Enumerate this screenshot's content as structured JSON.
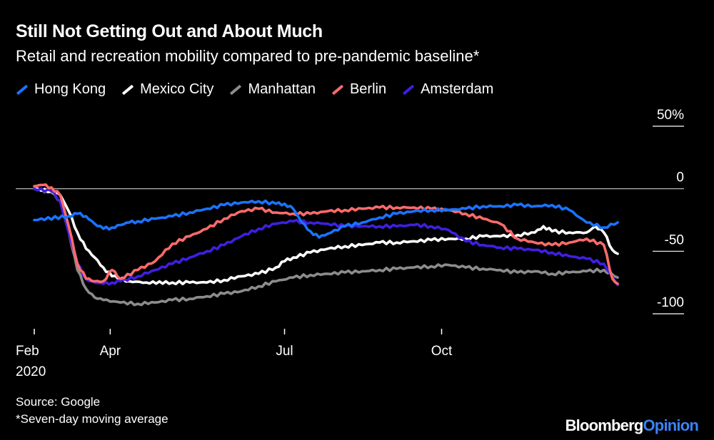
{
  "title": "Still Not Getting Out and About Much",
  "subtitle": "Retail and recreation mobility compared to pre-pandemic baseline*",
  "source": "Source: Google",
  "footnote": "*Seven-day moving average",
  "brand": {
    "part1": "Bloomberg",
    "part2": "Opinion"
  },
  "chart_data": {
    "type": "line",
    "title": "Still Not Getting Out and About Much",
    "ylabel": "Retail and recreation mobility compared to pre-pandemic baseline (%)",
    "ylim": [
      -100,
      50
    ],
    "xlim": [
      0,
      345
    ],
    "x_ticks": [
      {
        "x": 0,
        "label": "Feb",
        "sublabel": "2020"
      },
      {
        "x": 44,
        "label": "Apr",
        "sublabel": ""
      },
      {
        "x": 145,
        "label": "Jul",
        "sublabel": ""
      },
      {
        "x": 236,
        "label": "Oct",
        "sublabel": ""
      }
    ],
    "y_ticks": [
      {
        "value": 50,
        "label": "50%"
      },
      {
        "value": 0,
        "label": "0"
      },
      {
        "value": -50,
        "label": "-50"
      },
      {
        "value": -100,
        "label": "-100"
      }
    ],
    "zero_line": 0,
    "x_unit": "days since Feb 15, 2020",
    "series": [
      {
        "name": "Hong Kong",
        "color": "#1a73ff",
        "x": [
          0,
          20,
          25,
          30,
          35,
          40,
          45,
          50,
          55,
          60,
          70,
          80,
          90,
          100,
          110,
          120,
          130,
          140,
          145,
          150,
          155,
          160,
          165,
          170,
          180,
          190,
          200,
          210,
          220,
          230,
          240,
          250,
          260,
          270,
          280,
          290,
          300,
          310,
          320,
          330,
          338
        ],
        "y": [
          -25,
          -22,
          -20,
          -22,
          -28,
          -32,
          -31,
          -29,
          -27,
          -26,
          -24,
          -22,
          -19,
          -16,
          -13,
          -11,
          -10,
          -12,
          -12,
          -16,
          -27,
          -34,
          -39,
          -36,
          -30,
          -27,
          -23,
          -20,
          -18,
          -17,
          -17,
          -16,
          -14,
          -14,
          -13,
          -14,
          -13,
          -17,
          -27,
          -31,
          -27
        ]
      },
      {
        "name": "Mexico City",
        "color": "#ffffff",
        "x": [
          0,
          10,
          15,
          20,
          25,
          30,
          35,
          40,
          45,
          55,
          65,
          80,
          90,
          100,
          110,
          120,
          130,
          140,
          145,
          150,
          160,
          170,
          180,
          190,
          200,
          210,
          220,
          230,
          240,
          250,
          260,
          270,
          280,
          290,
          295,
          300,
          310,
          320,
          325,
          330,
          335,
          338
        ],
        "y": [
          0,
          -2,
          -5,
          -18,
          -35,
          -48,
          -55,
          -63,
          -70,
          -74,
          -75,
          -75,
          -75,
          -75,
          -73,
          -70,
          -68,
          -63,
          -58,
          -55,
          -51,
          -48,
          -46,
          -45,
          -43,
          -43,
          -42,
          -41,
          -40,
          -40,
          -38,
          -38,
          -37,
          -35,
          -30,
          -34,
          -35,
          -35,
          -30,
          -35,
          -49,
          -52
        ]
      },
      {
        "name": "Manhattan",
        "color": "#8c8c8c",
        "x": [
          0,
          10,
          15,
          20,
          25,
          30,
          35,
          40,
          50,
          60,
          70,
          80,
          90,
          100,
          110,
          120,
          130,
          140,
          150,
          160,
          170,
          180,
          190,
          200,
          210,
          220,
          230,
          240,
          250,
          260,
          270,
          280,
          290,
          300,
          310,
          320,
          330,
          338
        ],
        "y": [
          0,
          -3,
          -10,
          -35,
          -65,
          -80,
          -87,
          -89,
          -91,
          -92,
          -91,
          -89,
          -88,
          -86,
          -84,
          -82,
          -78,
          -74,
          -71,
          -69,
          -68,
          -67,
          -66,
          -65,
          -64,
          -63,
          -62,
          -61,
          -63,
          -64,
          -65,
          -67,
          -66,
          -68,
          -67,
          -66,
          -65,
          -71
        ]
      },
      {
        "name": "Berlin",
        "color": "#ff6b6b",
        "x": [
          0,
          5,
          10,
          15,
          20,
          25,
          30,
          35,
          40,
          45,
          50,
          60,
          70,
          80,
          90,
          100,
          110,
          120,
          130,
          140,
          150,
          160,
          170,
          180,
          190,
          200,
          210,
          220,
          230,
          240,
          250,
          260,
          270,
          280,
          290,
          300,
          310,
          320,
          330,
          335,
          338
        ],
        "y": [
          2,
          3,
          1,
          -5,
          -30,
          -60,
          -72,
          -74,
          -74,
          -65,
          -72,
          -65,
          -58,
          -44,
          -38,
          -32,
          -24,
          -18,
          -16,
          -19,
          -20,
          -20,
          -18,
          -17,
          -16,
          -15,
          -15,
          -15,
          -16,
          -17,
          -20,
          -24,
          -28,
          -40,
          -43,
          -45,
          -43,
          -40,
          -45,
          -72,
          -76
        ]
      },
      {
        "name": "Amsterdam",
        "color": "#3f1fe0",
        "x": [
          0,
          10,
          15,
          20,
          25,
          30,
          35,
          40,
          45,
          50,
          60,
          70,
          80,
          90,
          100,
          110,
          120,
          130,
          140,
          150,
          160,
          170,
          180,
          190,
          200,
          210,
          220,
          230,
          240,
          250,
          260,
          270,
          280,
          290,
          300,
          310,
          320,
          330,
          338
        ],
        "y": [
          0,
          -2,
          -10,
          -35,
          -60,
          -72,
          -75,
          -76,
          -75,
          -74,
          -70,
          -65,
          -60,
          -55,
          -50,
          -45,
          -38,
          -32,
          -28,
          -26,
          -27,
          -28,
          -30,
          -30,
          -30,
          -30,
          -29,
          -30,
          -33,
          -42,
          -45,
          -47,
          -48,
          -49,
          -51,
          -54,
          -56,
          -60,
          -77
        ]
      }
    ]
  }
}
